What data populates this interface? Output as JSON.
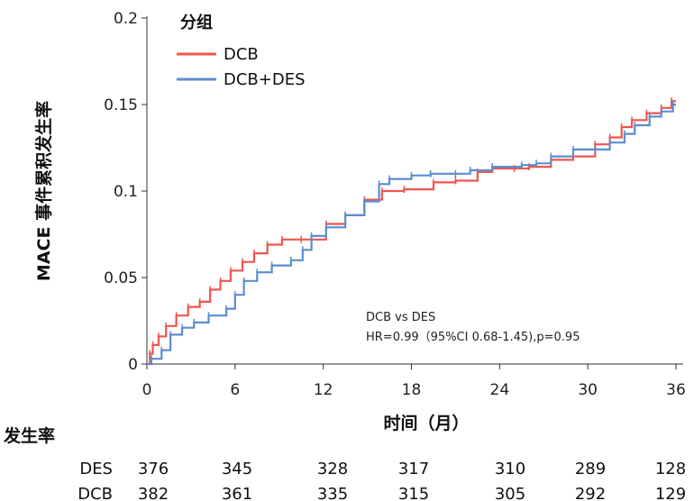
{
  "chart_data": {
    "type": "line",
    "subtype": "kaplan-meier step curve",
    "xlabel": "时间（月）",
    "ylabel": "MACE 事件累积发生率",
    "xlim": [
      0,
      36
    ],
    "ylim": [
      0,
      0.2
    ],
    "x_ticks": [
      "0",
      "6",
      "12",
      "18",
      "24",
      "30",
      "36"
    ],
    "y_ticks": [
      "0",
      "0.05",
      "0.1",
      "0.15",
      "0.2"
    ],
    "legend": {
      "title": "分组",
      "placement": "top-left"
    },
    "grid": false,
    "annotation": {
      "line1": "DCB vs DES",
      "line2": "HR=0.99（95%CI 0.68-1.45),p=0.95"
    },
    "series": [
      {
        "name": "DCB",
        "color": "#f0554f",
        "points": [
          [
            0,
            0
          ],
          [
            0.2,
            0.006
          ],
          [
            0.4,
            0.011
          ],
          [
            0.8,
            0.016
          ],
          [
            1.3,
            0.022
          ],
          [
            2.0,
            0.028
          ],
          [
            2.8,
            0.033
          ],
          [
            3.6,
            0.036
          ],
          [
            4.3,
            0.043
          ],
          [
            5.0,
            0.048
          ],
          [
            5.7,
            0.054
          ],
          [
            6.5,
            0.059
          ],
          [
            7.3,
            0.064
          ],
          [
            8.2,
            0.069
          ],
          [
            9.2,
            0.072
          ],
          [
            10.5,
            0.072
          ],
          [
            12.2,
            0.081
          ],
          [
            13.5,
            0.086
          ],
          [
            14.8,
            0.095
          ],
          [
            16.0,
            0.1
          ],
          [
            17.5,
            0.101
          ],
          [
            19.5,
            0.105
          ],
          [
            21.0,
            0.106
          ],
          [
            22.5,
            0.111
          ],
          [
            23.5,
            0.113
          ],
          [
            25.0,
            0.113
          ],
          [
            26.0,
            0.114
          ],
          [
            27.5,
            0.118
          ],
          [
            29.0,
            0.12
          ],
          [
            30.5,
            0.127
          ],
          [
            31.5,
            0.131
          ],
          [
            32.3,
            0.137
          ],
          [
            33.0,
            0.141
          ],
          [
            34.0,
            0.145
          ],
          [
            35.0,
            0.148
          ],
          [
            35.7,
            0.152
          ]
        ]
      },
      {
        "name": "DCB+DES",
        "color": "#5b8ecf",
        "points": [
          [
            0,
            0
          ],
          [
            0.3,
            0.003
          ],
          [
            1.0,
            0.008
          ],
          [
            1.6,
            0.017
          ],
          [
            2.4,
            0.021
          ],
          [
            3.2,
            0.024
          ],
          [
            4.2,
            0.028
          ],
          [
            5.4,
            0.032
          ],
          [
            6.0,
            0.04
          ],
          [
            6.6,
            0.048
          ],
          [
            7.5,
            0.053
          ],
          [
            8.5,
            0.057
          ],
          [
            9.8,
            0.06
          ],
          [
            10.6,
            0.066
          ],
          [
            11.2,
            0.074
          ],
          [
            12.2,
            0.079
          ],
          [
            13.5,
            0.086
          ],
          [
            14.8,
            0.094
          ],
          [
            15.8,
            0.104
          ],
          [
            16.5,
            0.107
          ],
          [
            18.0,
            0.109
          ],
          [
            19.3,
            0.11
          ],
          [
            21.0,
            0.11
          ],
          [
            22.0,
            0.112
          ],
          [
            23.5,
            0.114
          ],
          [
            25.5,
            0.115
          ],
          [
            26.5,
            0.116
          ],
          [
            27.5,
            0.12
          ],
          [
            29.0,
            0.124
          ],
          [
            30.5,
            0.124
          ],
          [
            31.5,
            0.128
          ],
          [
            32.5,
            0.133
          ],
          [
            33.2,
            0.138
          ],
          [
            34.2,
            0.143
          ],
          [
            35.0,
            0.146
          ],
          [
            35.8,
            0.15
          ]
        ]
      }
    ]
  },
  "risk_table": {
    "title": "发生率",
    "rows": [
      {
        "label": "DES",
        "values": [
          "376",
          "345",
          "328",
          "317",
          "310",
          "289",
          "128"
        ]
      },
      {
        "label": "DCB",
        "values": [
          "382",
          "361",
          "335",
          "315",
          "305",
          "292",
          "129"
        ]
      }
    ]
  }
}
